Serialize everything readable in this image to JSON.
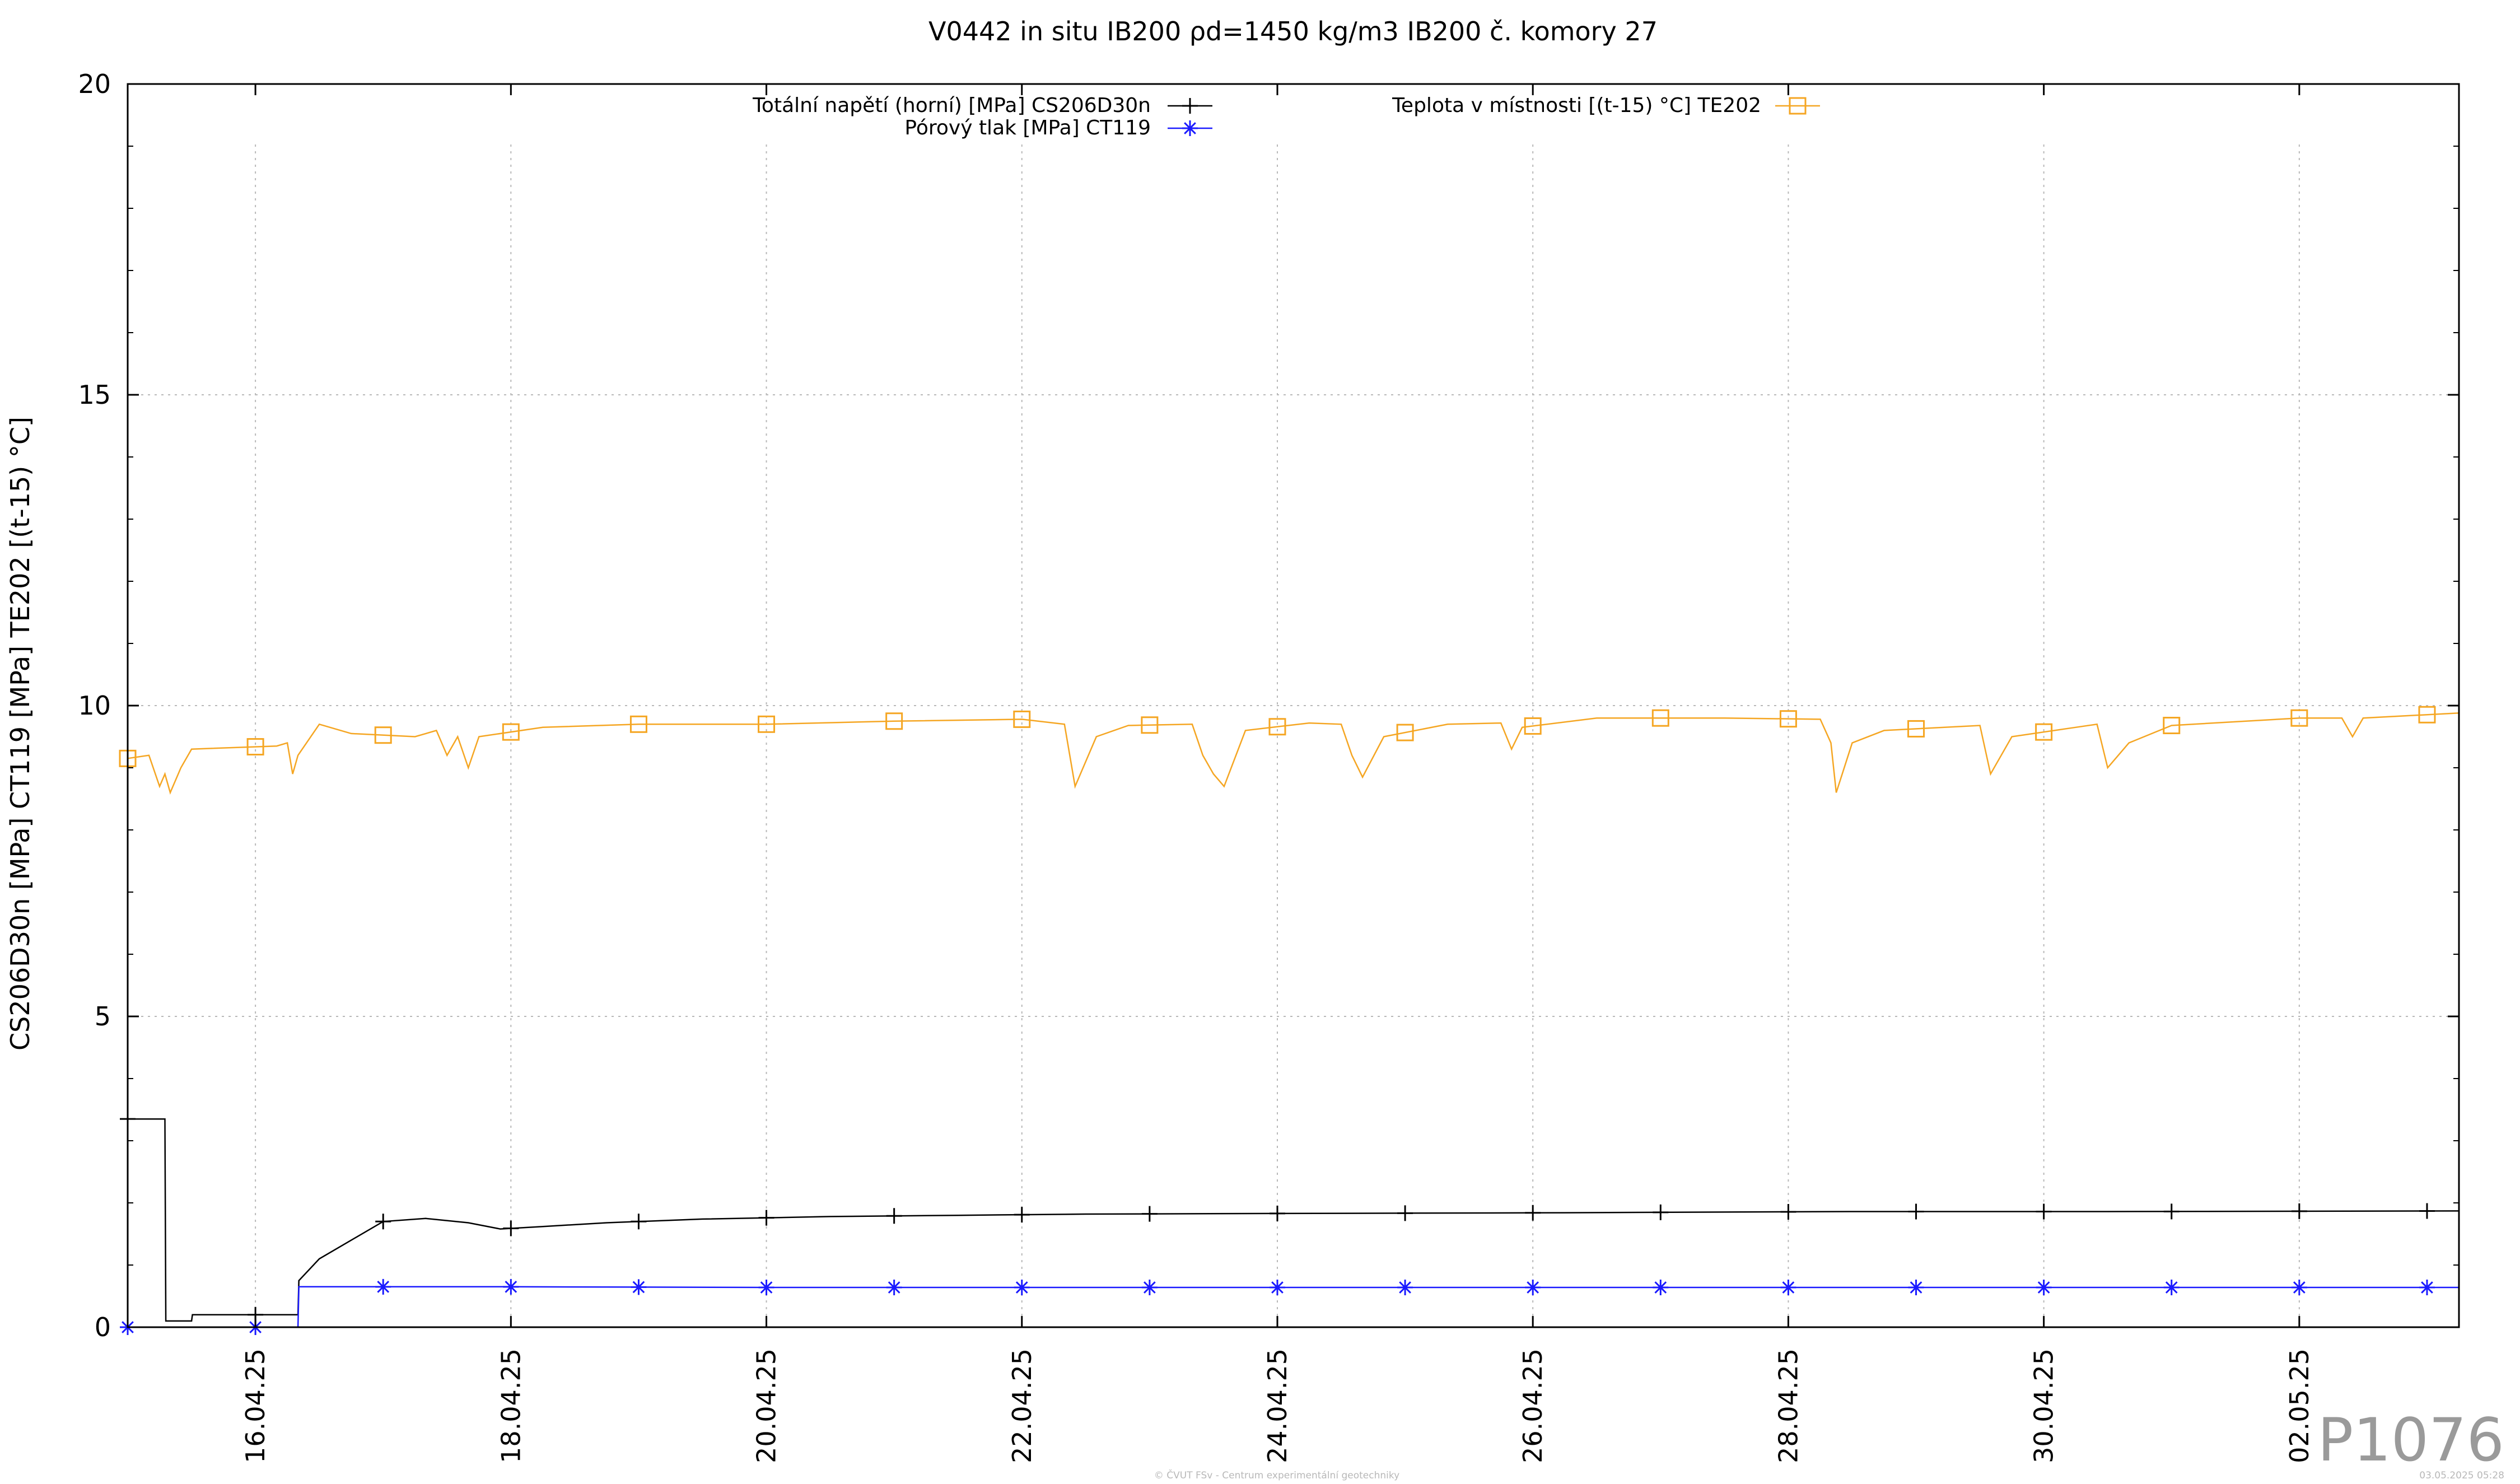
{
  "chart_data": {
    "type": "line",
    "title": "V0442 in situ IB200 ρd=1450 kg/m3 IB200 č. komory 27",
    "ylabel": "CS206D30n [MPa] CT119 [MPa] TE202 [(t-15) °C]",
    "xlabel": "",
    "ylim": [
      0,
      20
    ],
    "xlim": [
      "2025-04-15 00:00",
      "2025-05-03 06:00"
    ],
    "y_ticks": [
      "0",
      "5",
      "10",
      "15",
      "20"
    ],
    "x_ticks": [
      "16.04.25",
      "18.04.25",
      "20.04.25",
      "22.04.25",
      "24.04.25",
      "26.04.25",
      "28.04.25",
      "30.04.25",
      "02.05.25"
    ],
    "grid": true,
    "legend": "top",
    "series": [
      {
        "name": "Totální napětí (horní) [MPa] CS206D30n",
        "color": "#000000",
        "marker": "plus",
        "points": [
          [
            "2025-04-15 00:00",
            3.35
          ],
          [
            "2025-04-15 07:00",
            3.35
          ],
          [
            "2025-04-15 07:10",
            0.1
          ],
          [
            "2025-04-15 12:00",
            0.1
          ],
          [
            "2025-04-15 12:10",
            0.2
          ],
          [
            "2025-04-16 08:00",
            0.2
          ],
          [
            "2025-04-16 08:10",
            0.75
          ],
          [
            "2025-04-16 12:00",
            1.1
          ],
          [
            "2025-04-17 00:00",
            1.7
          ],
          [
            "2025-04-17 08:00",
            1.75
          ],
          [
            "2025-04-17 16:00",
            1.68
          ],
          [
            "2025-04-17 22:00",
            1.58
          ],
          [
            "2025-04-18 06:00",
            1.62
          ],
          [
            "2025-04-18 18:00",
            1.68
          ],
          [
            "2025-04-19 12:00",
            1.74
          ],
          [
            "2025-04-20 12:00",
            1.78
          ],
          [
            "2025-04-21 12:00",
            1.8
          ],
          [
            "2025-04-22 12:00",
            1.82
          ],
          [
            "2025-04-24 00:00",
            1.83
          ],
          [
            "2025-04-26 00:00",
            1.84
          ],
          [
            "2025-04-28 12:00",
            1.86
          ],
          [
            "2025-04-30 12:00",
            1.86
          ],
          [
            "2025-05-03 06:00",
            1.87
          ]
        ]
      },
      {
        "name": "Pórový tlak [MPa] CT119",
        "color": "#1a1aff",
        "marker": "star",
        "points": [
          [
            "2025-04-15 00:00",
            0.0
          ],
          [
            "2025-04-16 08:00",
            0.0
          ],
          [
            "2025-04-16 08:10",
            0.65
          ],
          [
            "2025-04-18 00:00",
            0.65
          ],
          [
            "2025-04-20 00:00",
            0.64
          ],
          [
            "2025-04-25 00:00",
            0.64
          ],
          [
            "2025-05-03 06:00",
            0.64
          ]
        ]
      },
      {
        "name": "Teplota v místnosti [(t-15) °C] TE202",
        "color": "#f5a623",
        "marker": "square",
        "points": [
          [
            "2025-04-15 00:00",
            9.15
          ],
          [
            "2025-04-15 04:00",
            9.2
          ],
          [
            "2025-04-15 06:00",
            8.7
          ],
          [
            "2025-04-15 07:00",
            8.9
          ],
          [
            "2025-04-15 08:00",
            8.6
          ],
          [
            "2025-04-15 09:00",
            8.8
          ],
          [
            "2025-04-15 10:00",
            9.0
          ],
          [
            "2025-04-15 12:00",
            9.3
          ],
          [
            "2025-04-16 04:00",
            9.35
          ],
          [
            "2025-04-16 06:00",
            9.4
          ],
          [
            "2025-04-16 07:00",
            8.9
          ],
          [
            "2025-04-16 08:00",
            9.2
          ],
          [
            "2025-04-16 12:00",
            9.7
          ],
          [
            "2025-04-16 18:00",
            9.55
          ],
          [
            "2025-04-17 06:00",
            9.5
          ],
          [
            "2025-04-17 10:00",
            9.6
          ],
          [
            "2025-04-17 12:00",
            9.2
          ],
          [
            "2025-04-17 14:00",
            9.5
          ],
          [
            "2025-04-17 16:00",
            9.0
          ],
          [
            "2025-04-17 18:00",
            9.5
          ],
          [
            "2025-04-18 06:00",
            9.65
          ],
          [
            "2025-04-19 00:00",
            9.7
          ],
          [
            "2025-04-20 00:00",
            9.7
          ],
          [
            "2025-04-21 00:00",
            9.75
          ],
          [
            "2025-04-22 00:00",
            9.78
          ],
          [
            "2025-04-22 08:00",
            9.7
          ],
          [
            "2025-04-22 10:00",
            8.7
          ],
          [
            "2025-04-22 14:00",
            9.5
          ],
          [
            "2025-04-22 20:00",
            9.68
          ],
          [
            "2025-04-23 08:00",
            9.7
          ],
          [
            "2025-04-23 10:00",
            9.2
          ],
          [
            "2025-04-23 12:00",
            8.9
          ],
          [
            "2025-04-23 14:00",
            8.7
          ],
          [
            "2025-04-23 18:00",
            9.6
          ],
          [
            "2025-04-24 06:00",
            9.72
          ],
          [
            "2025-04-24 12:00",
            9.7
          ],
          [
            "2025-04-24 14:00",
            9.2
          ],
          [
            "2025-04-24 16:00",
            8.85
          ],
          [
            "2025-04-24 20:00",
            9.5
          ],
          [
            "2025-04-25 08:00",
            9.7
          ],
          [
            "2025-04-25 18:00",
            9.72
          ],
          [
            "2025-04-25 20:00",
            9.3
          ],
          [
            "2025-04-25 22:00",
            9.65
          ],
          [
            "2025-04-26 12:00",
            9.8
          ],
          [
            "2025-04-27 12:00",
            9.8
          ],
          [
            "2025-04-28 06:00",
            9.78
          ],
          [
            "2025-04-28 08:00",
            9.4
          ],
          [
            "2025-04-28 09:00",
            8.6
          ],
          [
            "2025-04-28 12:00",
            9.4
          ],
          [
            "2025-04-28 18:00",
            9.6
          ],
          [
            "2025-04-29 12:00",
            9.68
          ],
          [
            "2025-04-29 14:00",
            8.9
          ],
          [
            "2025-04-29 18:00",
            9.5
          ],
          [
            "2025-04-30 06:00",
            9.65
          ],
          [
            "2025-04-30 10:00",
            9.7
          ],
          [
            "2025-04-30 12:00",
            9.0
          ],
          [
            "2025-04-30 16:00",
            9.4
          ],
          [
            "2025-05-01 00:00",
            9.68
          ],
          [
            "2025-05-02 00:00",
            9.8
          ],
          [
            "2025-05-02 08:00",
            9.8
          ],
          [
            "2025-05-02 10:00",
            9.5
          ],
          [
            "2025-05-02 12:00",
            9.8
          ],
          [
            "2025-05-03 06:00",
            9.88
          ]
        ]
      }
    ]
  },
  "watermark": {
    "code": "P1076",
    "footer": "© ČVUT FSv - Centrum experimentální geotechniky",
    "timestamp": "03.05.2025 05:28"
  }
}
